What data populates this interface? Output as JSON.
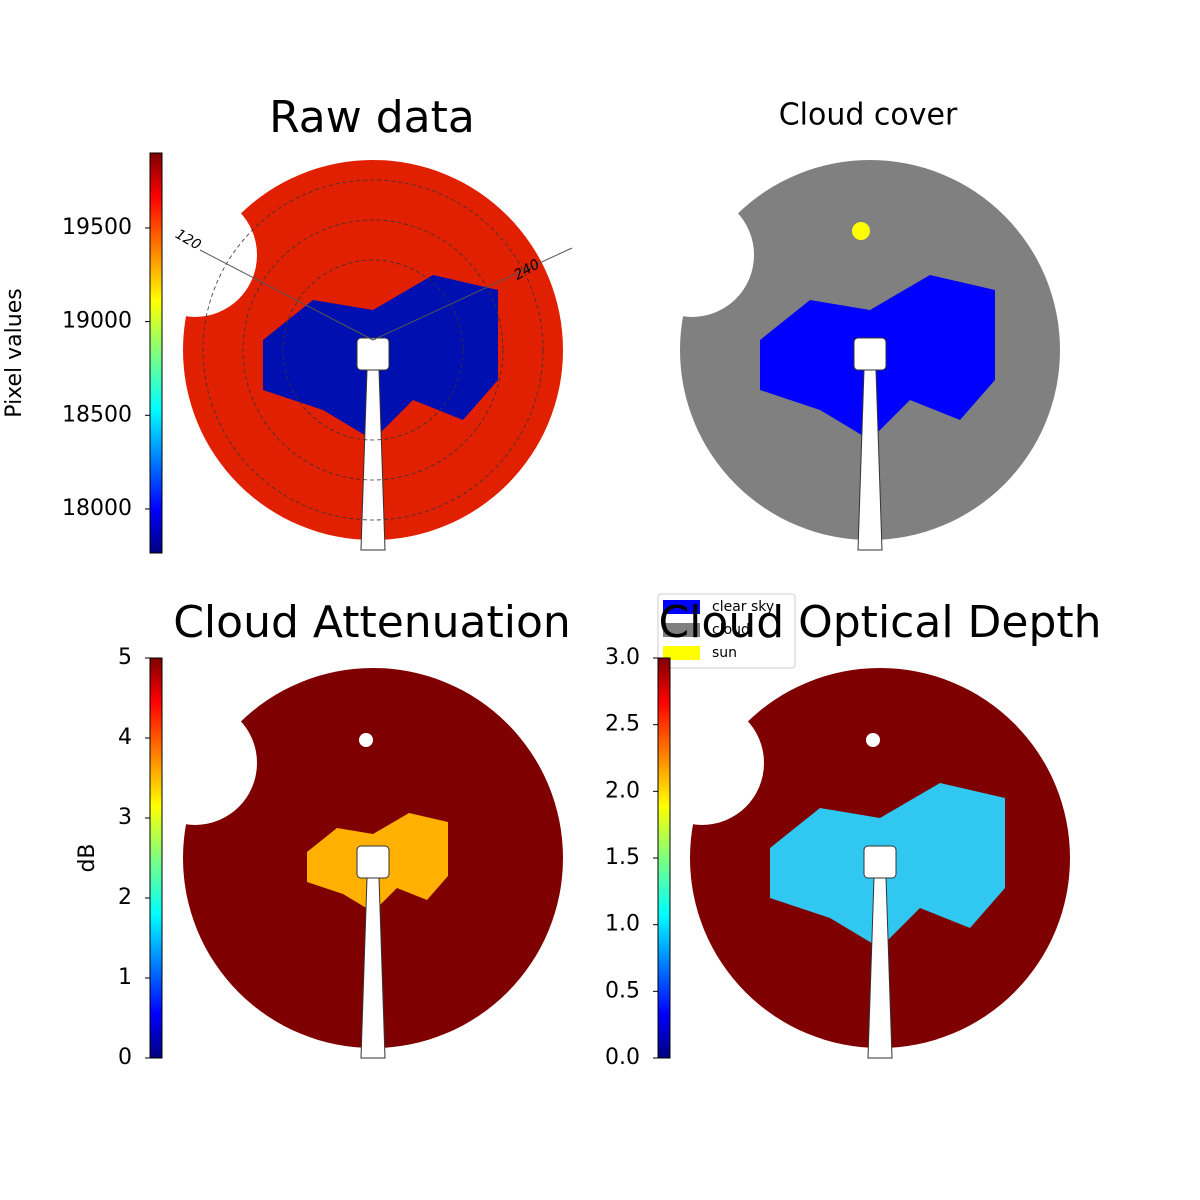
{
  "chart_data": [
    {
      "type": "image",
      "title": "Raw data",
      "colorbar": {
        "label": "Pixel values",
        "colormap": "jet",
        "ylim": [
          17765,
          19900
        ],
        "yticks": [
          18000,
          18500,
          19000,
          19500
        ]
      },
      "annotations": [
        "120",
        "240"
      ]
    },
    {
      "type": "image",
      "title": "Cloud cover",
      "legend": {
        "series": [
          {
            "name": "clear sky",
            "color": "#0000ff"
          },
          {
            "name": "cloud",
            "color": "#808080"
          },
          {
            "name": "sun",
            "color": "#ffff00"
          }
        ]
      }
    },
    {
      "type": "image",
      "title": "Cloud Attenuation",
      "colorbar": {
        "label": "dB",
        "colormap": "jet",
        "ylim": [
          0,
          5
        ],
        "yticks": [
          0,
          1,
          2,
          3,
          4,
          5
        ]
      }
    },
    {
      "type": "image",
      "title": "Cloud Optical Depth",
      "colorbar": {
        "colormap": "jet",
        "ylim": [
          0,
          3
        ],
        "yticks": [
          {
            "value": 0,
            "label": "0.0"
          },
          0.5,
          {
            "value": 1,
            "label": "1.0"
          },
          1.5,
          {
            "value": 2,
            "label": "2.0"
          },
          2.5,
          {
            "value": 3,
            "label": "3.0"
          }
        ]
      }
    }
  ]
}
